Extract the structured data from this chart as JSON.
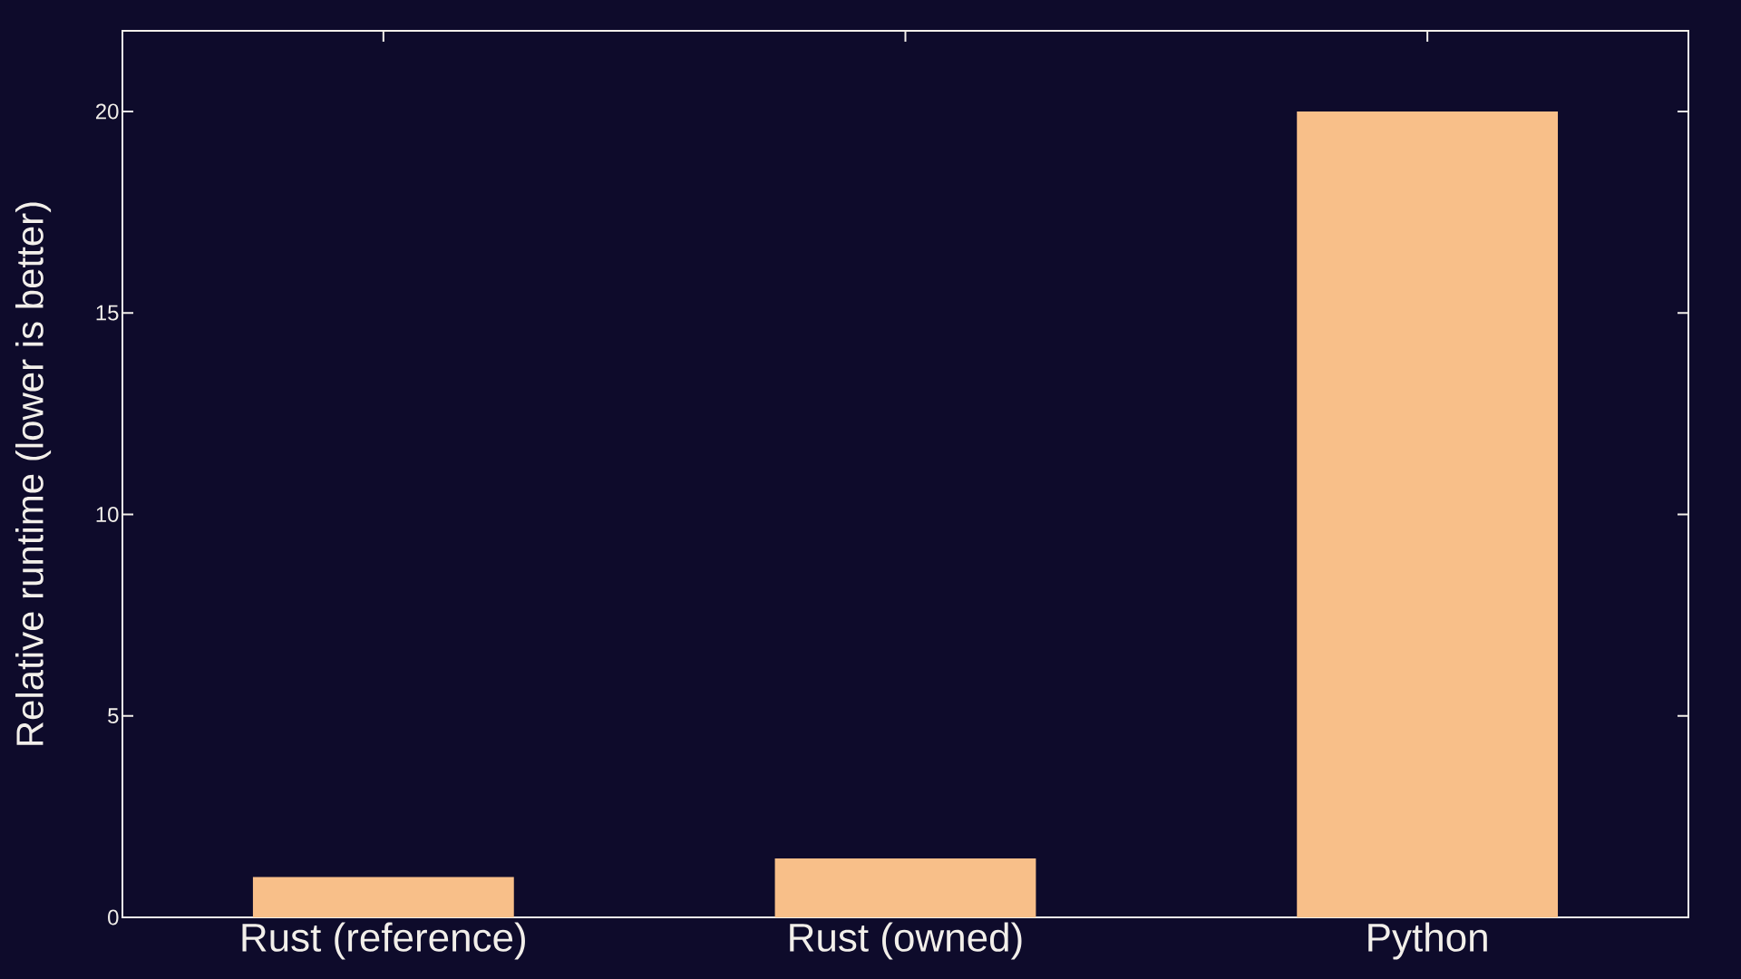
{
  "chart_data": {
    "type": "bar",
    "ylabel": "Relative runtime (lower is better)",
    "categories": [
      "Rust (reference)",
      "Rust (owned)",
      "Python"
    ],
    "values": [
      1,
      1.46,
      20
    ],
    "color": "#f8bf89",
    "ylim": [
      0,
      22
    ],
    "yticks": [
      0,
      5,
      10,
      15,
      20
    ]
  }
}
